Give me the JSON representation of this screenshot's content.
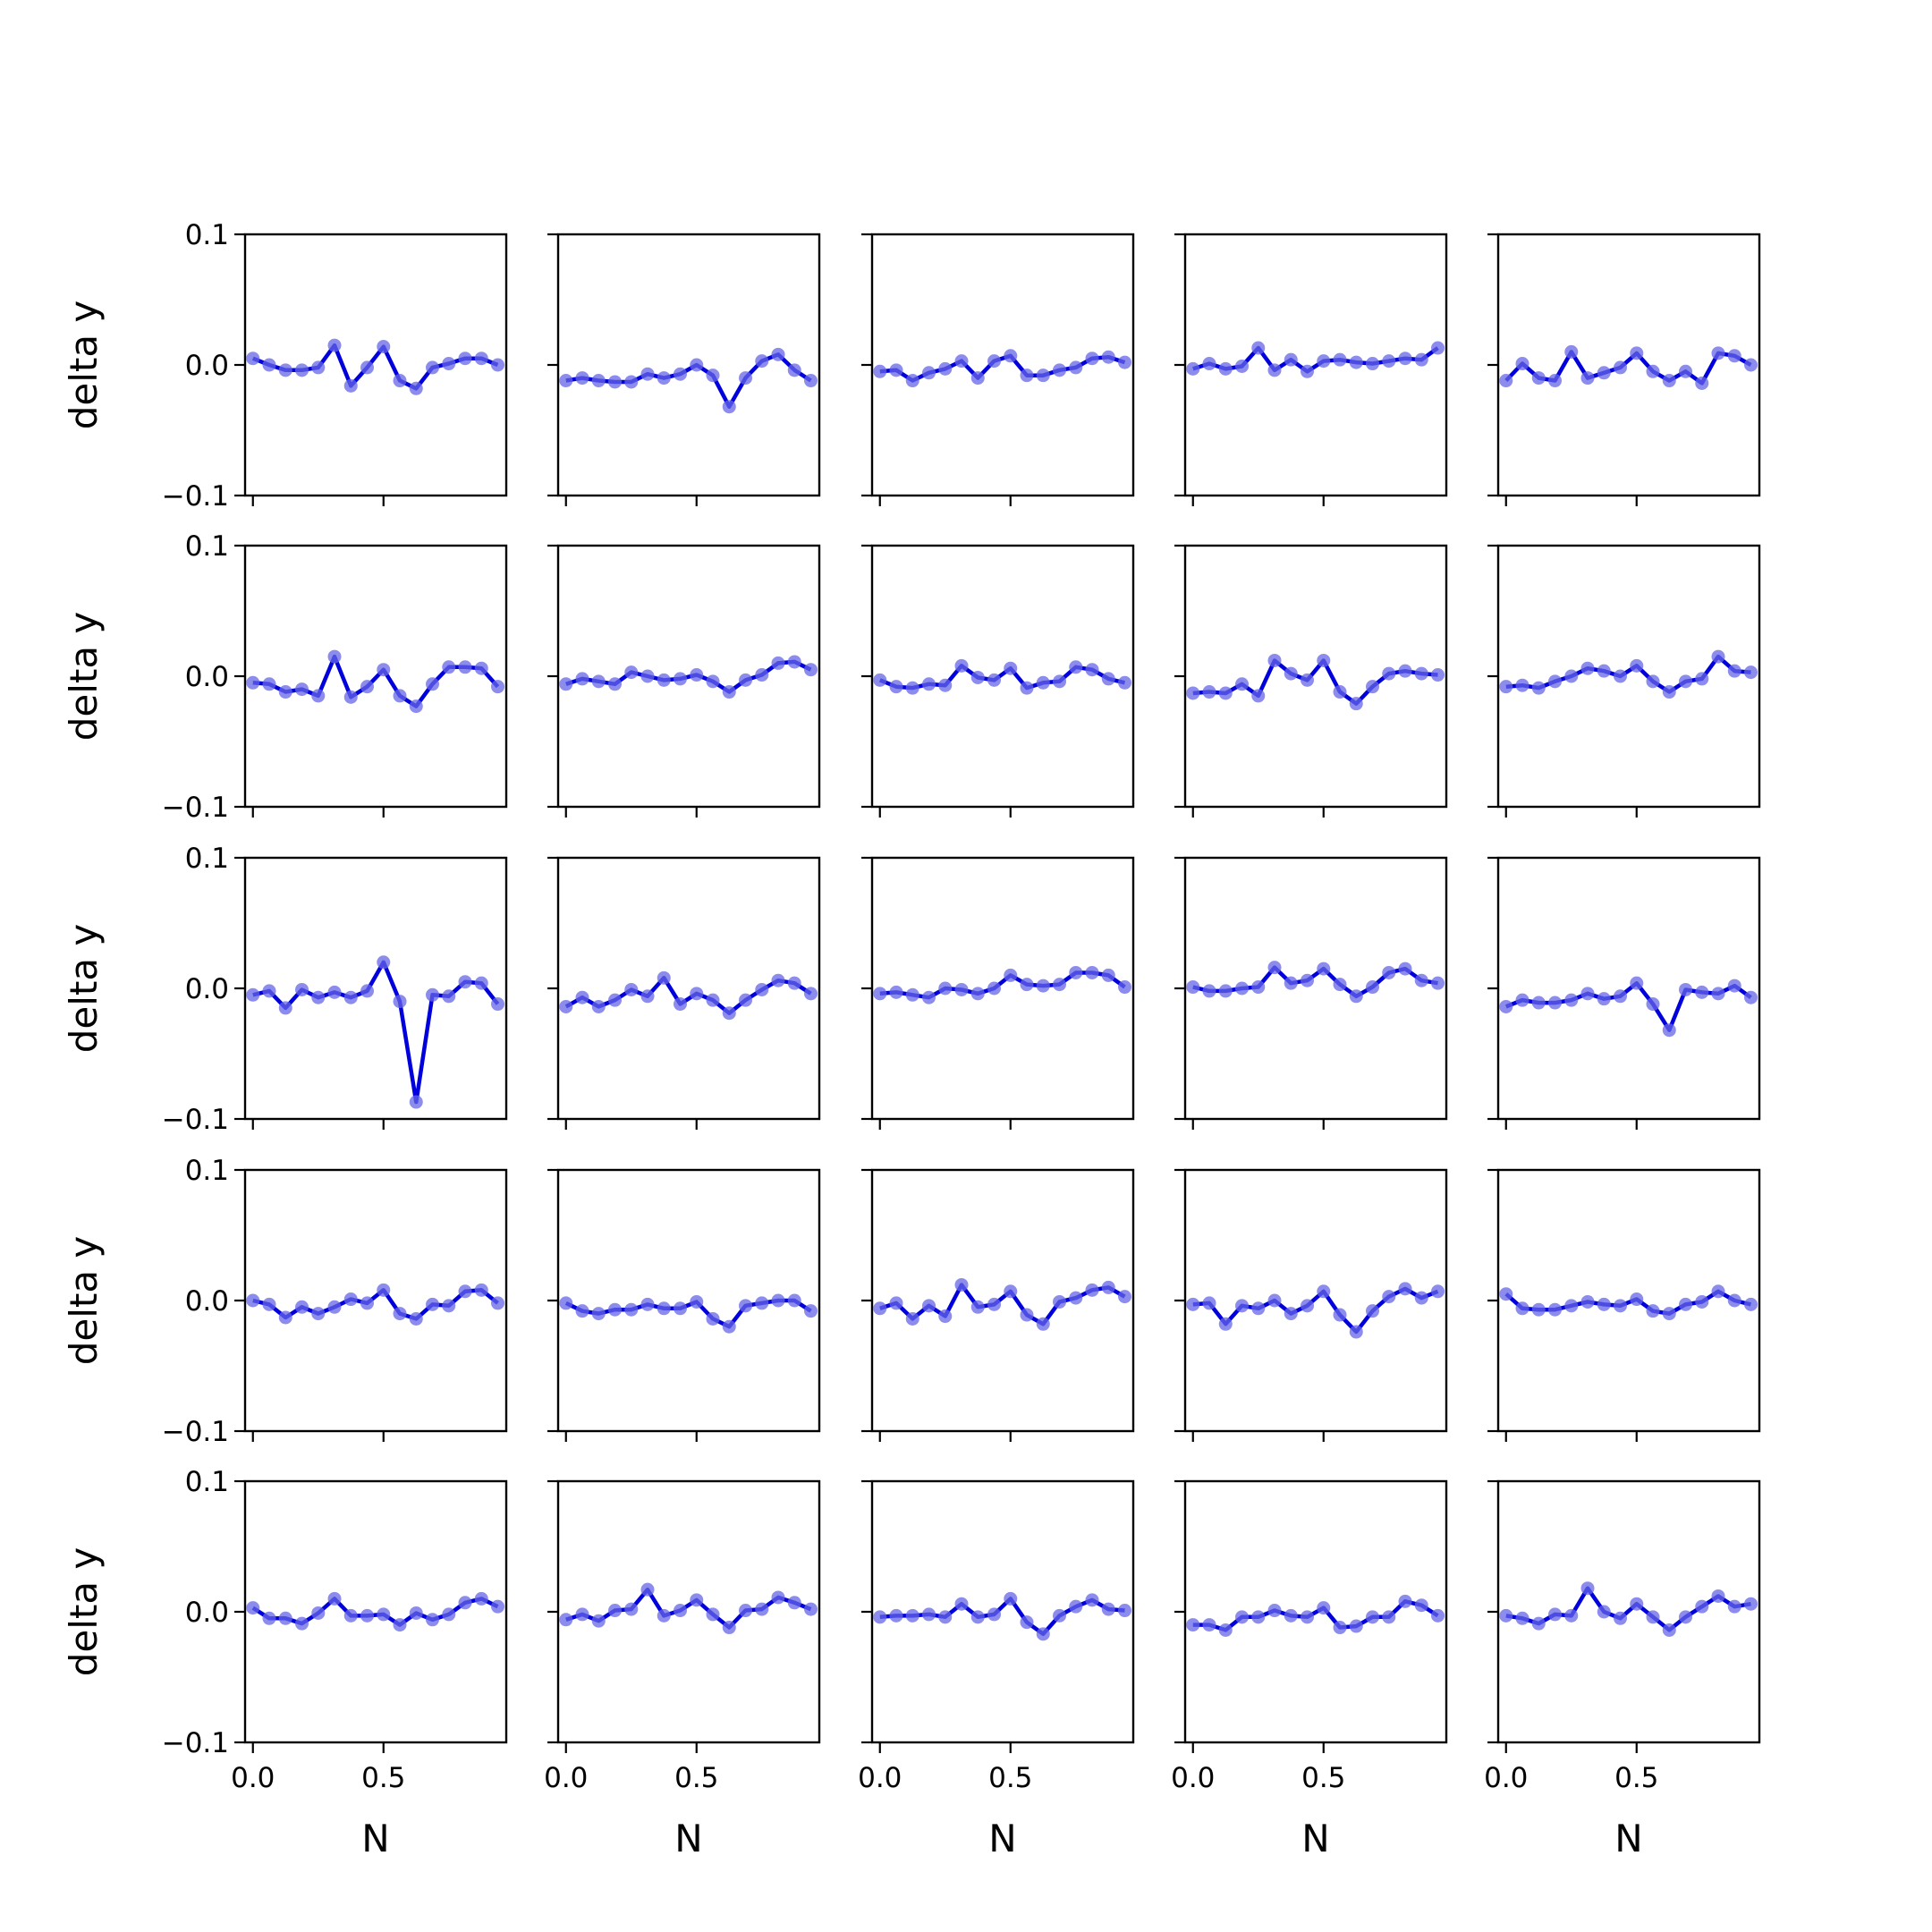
{
  "chart_data": {
    "type": "line",
    "layout": {
      "rows": 5,
      "cols": 5
    },
    "xlabel": "N",
    "ylabel": "delta y",
    "xlim": [
      -0.03,
      0.97
    ],
    "ylim": [
      -0.1,
      0.1
    ],
    "xticks": [
      0.0,
      0.5
    ],
    "xtick_labels": [
      "0.0",
      "0.5"
    ],
    "yticks": [
      0.1,
      0.0,
      -0.1
    ],
    "ytick_labels": [
      "0.1",
      "0.0",
      "−0.1"
    ],
    "grid": false,
    "legend": null,
    "colors": {
      "line": "#0000dd",
      "marker": "#6666e6"
    },
    "x": [
      0.0,
      0.0625,
      0.125,
      0.1875,
      0.25,
      0.3125,
      0.375,
      0.4375,
      0.5,
      0.5625,
      0.625,
      0.6875,
      0.75,
      0.8125,
      0.875,
      0.9375
    ],
    "panels": [
      [
        0.005,
        0.0,
        -0.004,
        -0.004,
        -0.002,
        0.015,
        -0.016,
        -0.002,
        0.014,
        -0.012,
        -0.018,
        -0.002,
        0.001,
        0.005,
        0.005,
        0.0
      ],
      [
        -0.012,
        -0.01,
        -0.012,
        -0.013,
        -0.013,
        -0.007,
        -0.01,
        -0.007,
        0.0,
        -0.008,
        -0.032,
        -0.01,
        0.003,
        0.008,
        -0.004,
        -0.012
      ],
      [
        -0.005,
        -0.004,
        -0.012,
        -0.006,
        -0.003,
        0.003,
        -0.01,
        0.003,
        0.007,
        -0.008,
        -0.008,
        -0.004,
        -0.002,
        0.005,
        0.006,
        0.002
      ],
      [
        -0.003,
        0.001,
        -0.003,
        -0.001,
        0.013,
        -0.004,
        0.004,
        -0.005,
        0.003,
        0.004,
        0.002,
        0.001,
        0.003,
        0.005,
        0.004,
        0.013
      ],
      [
        -0.012,
        0.001,
        -0.01,
        -0.012,
        0.01,
        -0.01,
        -0.006,
        -0.002,
        0.009,
        -0.005,
        -0.012,
        -0.005,
        -0.014,
        0.009,
        0.007,
        0.0
      ],
      [
        -0.005,
        -0.006,
        -0.012,
        -0.01,
        -0.015,
        0.015,
        -0.016,
        -0.008,
        0.005,
        -0.015,
        -0.023,
        -0.006,
        0.007,
        0.007,
        0.006,
        -0.008
      ],
      [
        -0.006,
        -0.002,
        -0.004,
        -0.006,
        0.003,
        0.0,
        -0.003,
        -0.002,
        0.001,
        -0.004,
        -0.012,
        -0.003,
        0.001,
        0.01,
        0.011,
        0.005
      ],
      [
        -0.003,
        -0.008,
        -0.009,
        -0.006,
        -0.007,
        0.008,
        -0.001,
        -0.003,
        0.006,
        -0.009,
        -0.005,
        -0.004,
        0.007,
        0.005,
        -0.002,
        -0.005
      ],
      [
        -0.013,
        -0.012,
        -0.013,
        -0.006,
        -0.015,
        0.012,
        0.002,
        -0.003,
        0.012,
        -0.012,
        -0.021,
        -0.008,
        0.002,
        0.004,
        0.002,
        0.001
      ],
      [
        -0.008,
        -0.007,
        -0.009,
        -0.004,
        0.0,
        0.006,
        0.004,
        0.0,
        0.008,
        -0.004,
        -0.012,
        -0.004,
        -0.002,
        0.015,
        0.004,
        0.003
      ],
      [
        -0.005,
        -0.002,
        -0.015,
        -0.001,
        -0.007,
        -0.003,
        -0.007,
        -0.002,
        0.02,
        -0.01,
        -0.087,
        -0.005,
        -0.006,
        0.005,
        0.004,
        -0.012
      ],
      [
        -0.014,
        -0.007,
        -0.014,
        -0.009,
        -0.001,
        -0.006,
        0.008,
        -0.012,
        -0.004,
        -0.009,
        -0.019,
        -0.009,
        -0.001,
        0.006,
        0.004,
        -0.004
      ],
      [
        -0.004,
        -0.003,
        -0.005,
        -0.007,
        0.0,
        -0.001,
        -0.004,
        0.0,
        0.01,
        0.003,
        0.002,
        0.003,
        0.012,
        0.012,
        0.01,
        0.001
      ],
      [
        0.001,
        -0.002,
        -0.002,
        0.0,
        0.001,
        0.016,
        0.004,
        0.006,
        0.015,
        0.003,
        -0.006,
        0.001,
        0.012,
        0.015,
        0.006,
        0.004
      ],
      [
        -0.014,
        -0.009,
        -0.011,
        -0.011,
        -0.009,
        -0.004,
        -0.008,
        -0.006,
        0.004,
        -0.012,
        -0.032,
        -0.001,
        -0.003,
        -0.004,
        0.002,
        -0.007
      ]
    ],
    "panels_rows_4_5": [
      [
        0.0,
        -0.003,
        -0.013,
        -0.005,
        -0.01,
        -0.005,
        0.001,
        -0.002,
        0.008,
        -0.01,
        -0.014,
        -0.003,
        -0.004,
        0.007,
        0.008,
        -0.002
      ],
      [
        -0.002,
        -0.008,
        -0.01,
        -0.007,
        -0.007,
        -0.003,
        -0.006,
        -0.006,
        -0.001,
        -0.014,
        -0.02,
        -0.004,
        -0.002,
        0.0,
        0.0,
        -0.008
      ],
      [
        -0.006,
        -0.002,
        -0.014,
        -0.004,
        -0.012,
        0.012,
        -0.005,
        -0.003,
        0.007,
        -0.011,
        -0.018,
        -0.001,
        0.002,
        0.008,
        0.01,
        0.003
      ],
      [
        -0.003,
        -0.002,
        -0.018,
        -0.004,
        -0.006,
        0.0,
        -0.01,
        -0.004,
        0.007,
        -0.011,
        -0.024,
        -0.008,
        0.003,
        0.009,
        0.002,
        0.007
      ],
      [
        0.005,
        -0.006,
        -0.007,
        -0.007,
        -0.004,
        -0.001,
        -0.003,
        -0.004,
        0.001,
        -0.008,
        -0.01,
        -0.003,
        -0.001,
        0.007,
        0.0,
        -0.003
      ],
      [
        0.003,
        -0.005,
        -0.005,
        -0.009,
        -0.001,
        0.01,
        -0.003,
        -0.003,
        -0.002,
        -0.01,
        -0.001,
        -0.006,
        -0.002,
        0.007,
        0.01,
        0.004
      ],
      [
        -0.006,
        -0.002,
        -0.007,
        0.001,
        0.002,
        0.017,
        -0.003,
        0.001,
        0.009,
        -0.002,
        -0.012,
        0.001,
        0.002,
        0.011,
        0.007,
        0.002
      ],
      [
        -0.004,
        -0.003,
        -0.003,
        -0.002,
        -0.004,
        0.006,
        -0.004,
        -0.002,
        0.01,
        -0.008,
        -0.017,
        -0.003,
        0.004,
        0.009,
        0.002,
        0.001
      ],
      [
        -0.01,
        -0.01,
        -0.014,
        -0.004,
        -0.004,
        0.001,
        -0.003,
        -0.004,
        0.003,
        -0.012,
        -0.011,
        -0.004,
        -0.004,
        0.008,
        0.005,
        -0.003
      ],
      [
        -0.003,
        -0.005,
        -0.009,
        -0.002,
        -0.003,
        0.018,
        0.0,
        -0.005,
        0.006,
        -0.004,
        -0.014,
        -0.004,
        0.004,
        0.012,
        0.004,
        0.006
      ]
    ]
  }
}
